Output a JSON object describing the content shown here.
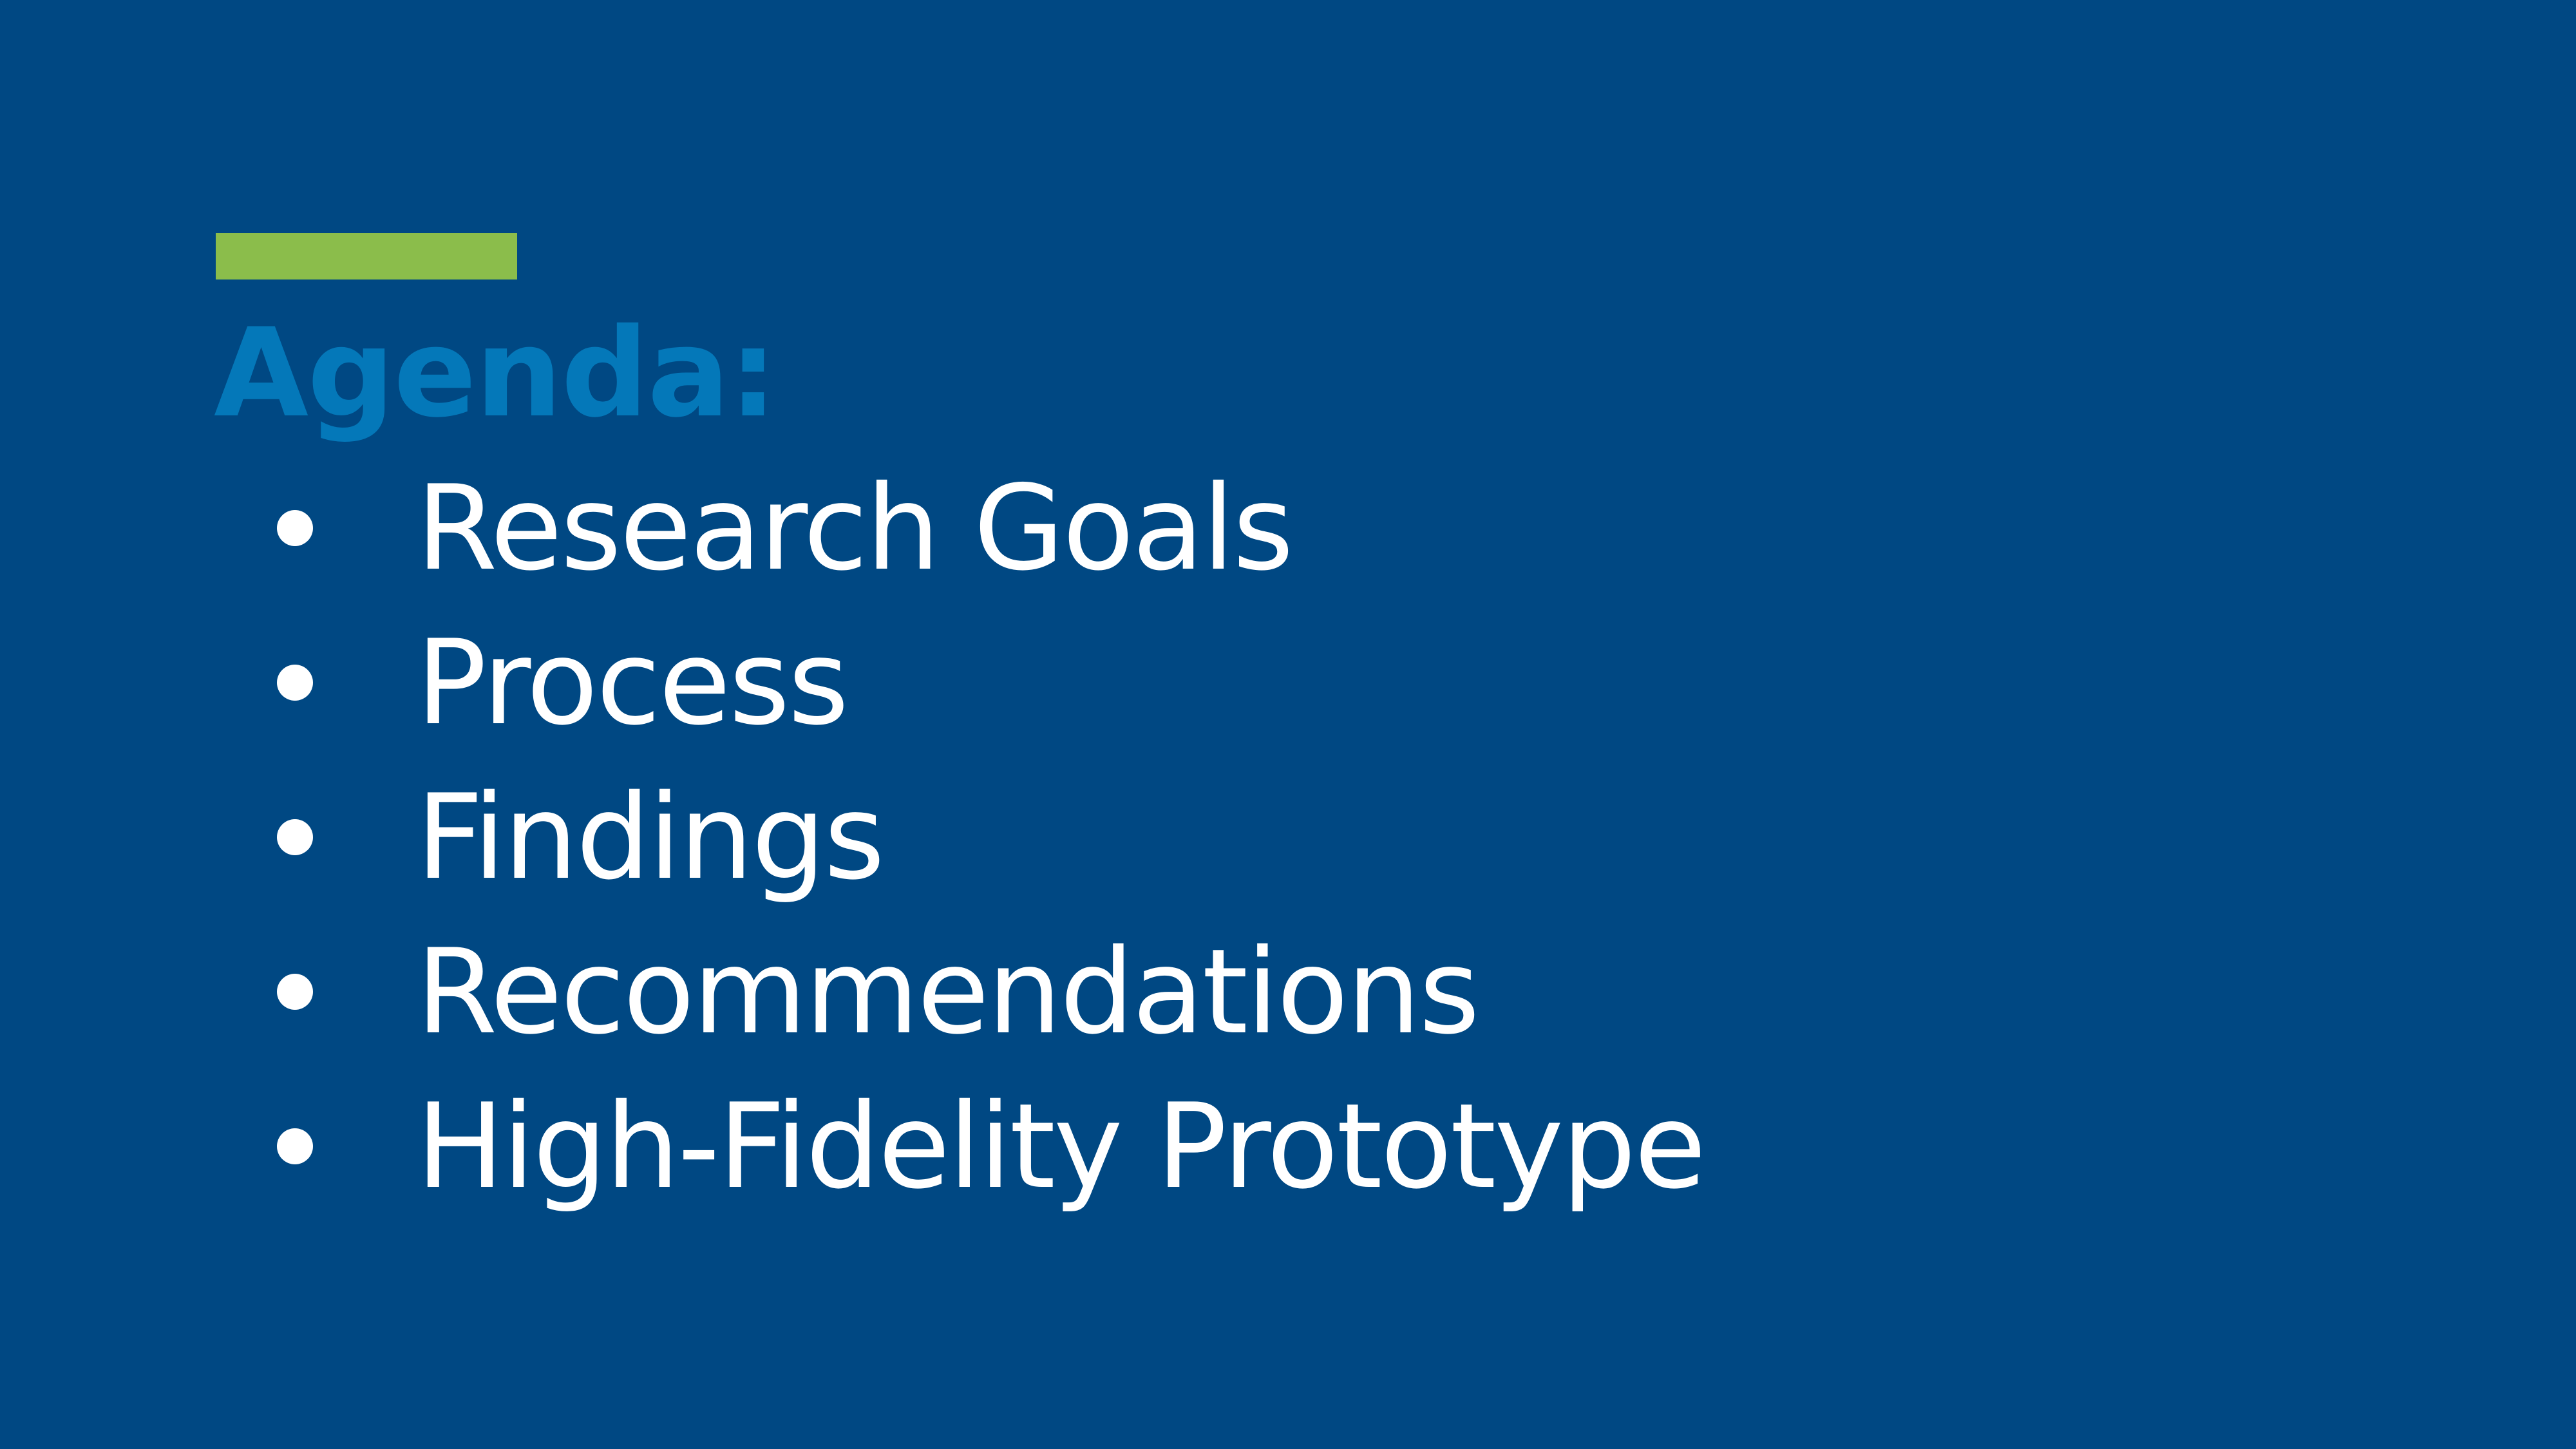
{
  "slide": {
    "title": "Agenda:",
    "items": [
      {
        "label": "Research Goals"
      },
      {
        "label": "Process"
      },
      {
        "label": "Findings"
      },
      {
        "label": "Recommendations"
      },
      {
        "label": "High-Fidelity Prototype"
      }
    ]
  },
  "colors": {
    "background": "#004883",
    "accent_bar": "#8BBD4B",
    "title": "#0478B9",
    "text": "#FFFFFF"
  }
}
